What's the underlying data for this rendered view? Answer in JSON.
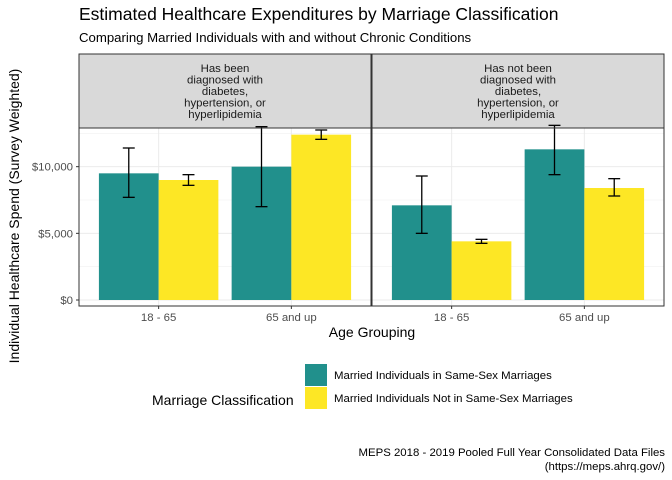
{
  "chart_data": {
    "type": "bar",
    "title": "Estimated Healthcare Expenditures by Marriage Classification",
    "subtitle": "Comparing Married Individuals with and without Chronic Conditions",
    "xlabel": "Age Grouping",
    "ylabel": "Individual Healthcare Spend (Survey Weighted)",
    "ylim": [
      -450,
      12900
    ],
    "y_ticks": [
      0,
      5000,
      10000
    ],
    "y_tick_labels": [
      "$0",
      "$5,000",
      "$10,000"
    ],
    "categories": [
      "18 - 65",
      "65 and up"
    ],
    "grid": true,
    "legend_title": "Marriage Classification",
    "legend_position": "bottom",
    "facets": [
      {
        "label": "Has been\ndiagnosed with\ndiabetes,\nhypertension, or\nhyperlipidemia",
        "series": [
          {
            "name": "Married Individuals in Same-Sex Marriages",
            "color": "#21908C",
            "values": [
              9500,
              10000
            ],
            "error_low": [
              7700,
              7000
            ],
            "error_high": [
              11400,
              13000
            ]
          },
          {
            "name": "Married Individuals Not in Same-Sex Marriages",
            "color": "#FDE725",
            "values": [
              9000,
              12400
            ],
            "error_low": [
              8600,
              12050
            ],
            "error_high": [
              9400,
              12750
            ]
          }
        ]
      },
      {
        "label": "Has not been\ndiagnosed with\ndiabetes,\nhypertension, or\nhyperlipidemia",
        "series": [
          {
            "name": "Married Individuals in Same-Sex Marriages",
            "color": "#21908C",
            "values": [
              7100,
              11300
            ],
            "error_low": [
              5000,
              9400
            ],
            "error_high": [
              9300,
              13100
            ]
          },
          {
            "name": "Married Individuals Not in Same-Sex Marriages",
            "color": "#FDE725",
            "values": [
              4400,
              8400
            ],
            "error_low": [
              4250,
              7800
            ],
            "error_high": [
              4550,
              9100
            ]
          }
        ]
      }
    ],
    "caption": [
      "MEPS 2018 - 2019 Pooled Full Year Consolidated Data Files",
      "(https://meps.ahrq.gov/)"
    ]
  }
}
